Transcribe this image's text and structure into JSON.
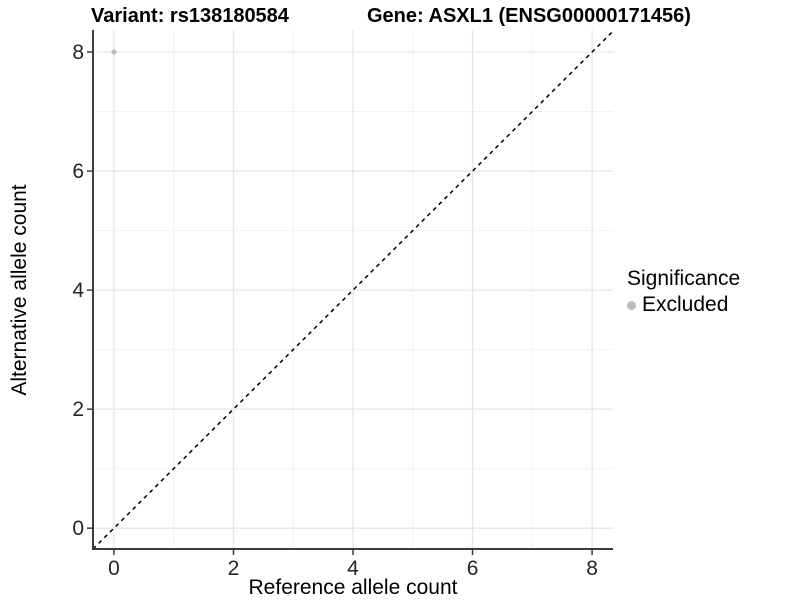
{
  "chart_data": {
    "type": "scatter",
    "titles": {
      "left": "Variant: rs138180584",
      "right": "Gene: ASXL1 (ENSG00000171456)"
    },
    "xlabel": "Reference allele count",
    "ylabel": "Alternative allele count",
    "xlim": [
      -0.35,
      8.35
    ],
    "ylim": [
      -0.35,
      8.37
    ],
    "x_ticks": [
      0,
      2,
      4,
      6,
      8
    ],
    "y_ticks": [
      0,
      2,
      4,
      6,
      8
    ],
    "x_minor_ticks": [
      1,
      3,
      5,
      7
    ],
    "y_minor_ticks": [
      1,
      3,
      5,
      7
    ],
    "grid": true,
    "points": [
      {
        "x": 0,
        "y": 8,
        "series": "Excluded"
      }
    ],
    "reference_line": {
      "type": "abline",
      "slope": 1,
      "intercept": 0,
      "style": "dashed"
    },
    "legend": {
      "title": "Significance",
      "position": "right",
      "items": [
        {
          "label": "Excluded",
          "color": "#bcbcbc"
        }
      ]
    }
  },
  "colors": {
    "background": "#ffffff",
    "point": "#bcbcbc",
    "grid_major": "#e6e6e6",
    "grid_minor": "#f2f2f2",
    "axis_line": "#3c3c3c",
    "tick_label": "#262626",
    "reference_line": "#000000"
  }
}
